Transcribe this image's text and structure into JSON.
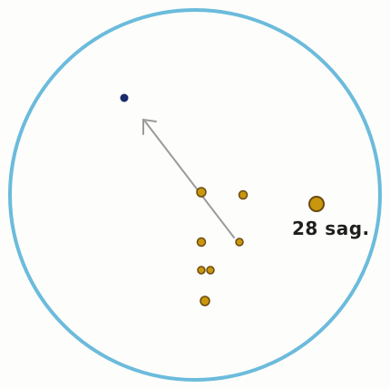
{
  "sketch": {
    "star_label": "28 sag.",
    "colors": {
      "paper": "#fdfdfb",
      "field_circle": "#6bbbdc",
      "star_fill": "#b8860b",
      "star_core": "#6b4a10",
      "target_dot": "#1b2a6b",
      "arrow": "#9a9a9a",
      "label_text": "#1f1f1f"
    },
    "icons": {
      "target": "navy-dot-icon",
      "direction": "pencil-arrow-icon"
    }
  }
}
